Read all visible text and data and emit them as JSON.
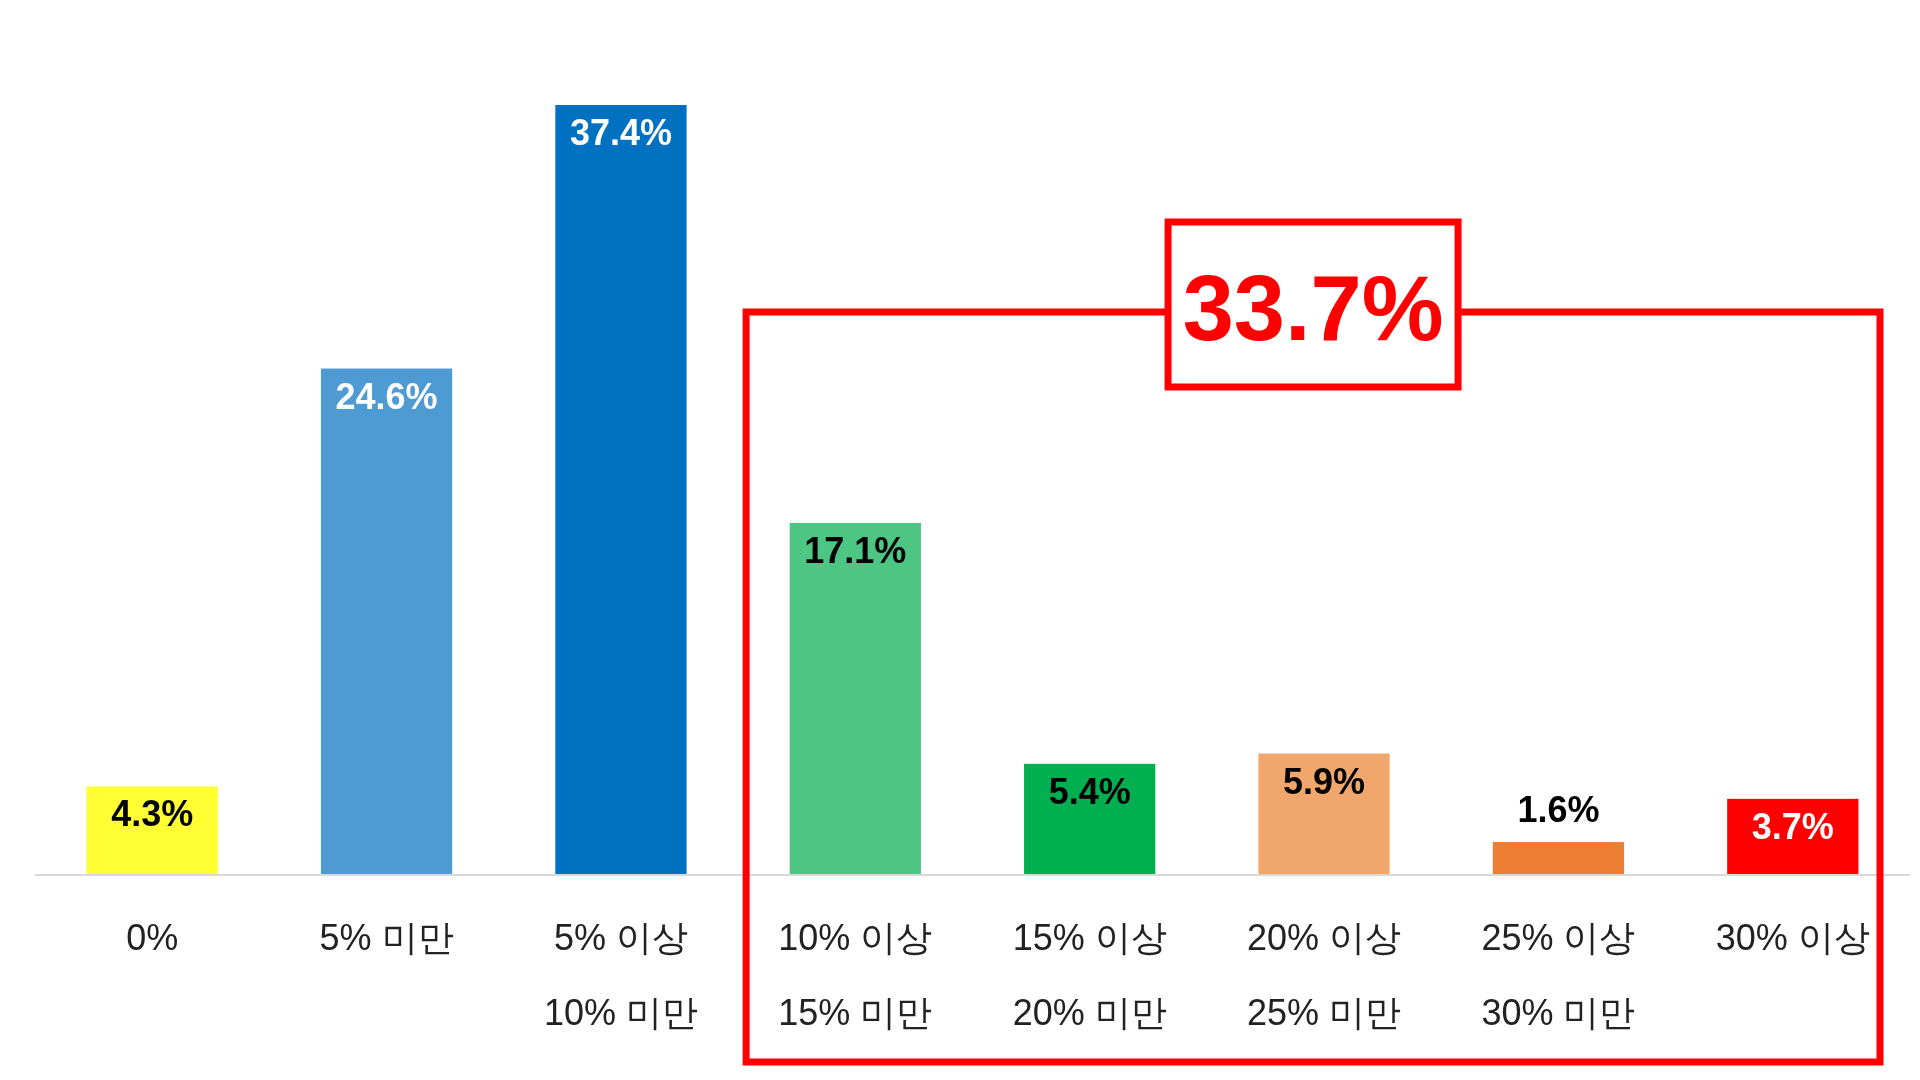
{
  "chart_data": {
    "type": "bar",
    "categories": [
      "0%",
      "5% 미만",
      "5% 이상 10% 미만",
      "10% 이상 15% 미만",
      "15% 이상 20% 미만",
      "20% 이상 25% 미만",
      "25% 이상 30% 미만",
      "30% 이상"
    ],
    "values": [
      4.3,
      24.6,
      37.4,
      17.1,
      5.4,
      5.9,
      1.6,
      3.7
    ],
    "colors": [
      "#ffff33",
      "#4e9bd4",
      "#0070c0",
      "#4dc684",
      "#00b050",
      "#f1a66c",
      "#ed7d31",
      "#ff0000"
    ],
    "value_labels": [
      "4.3%",
      "24.6%",
      "37.4%",
      "17.1%",
      "5.4%",
      "5.9%",
      "1.6%",
      "3.7%"
    ],
    "annotations": [
      "33.7%"
    ]
  }
}
